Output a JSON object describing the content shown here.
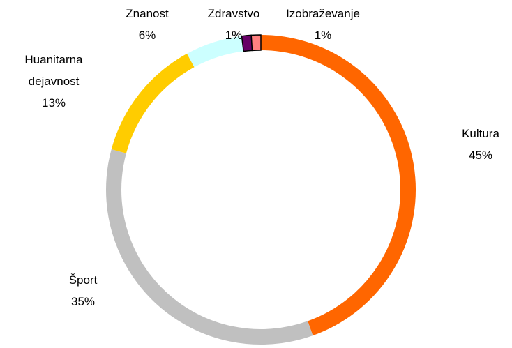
{
  "chart_data": {
    "type": "donut",
    "categories": [
      "Kultura",
      "Šport",
      "Huanitarna dejavnost",
      "Znanost",
      "Zdravstvo",
      "Izobraževanje"
    ],
    "values": [
      45,
      35,
      13,
      6,
      1,
      1
    ],
    "value_labels": [
      "45%",
      "35%",
      "13%",
      "6%",
      "1%",
      "1%"
    ],
    "colors": [
      "#ff6600",
      "#c0c0c0",
      "#ffcc00",
      "#ccffff",
      "#660066",
      "#ff8080"
    ]
  }
}
